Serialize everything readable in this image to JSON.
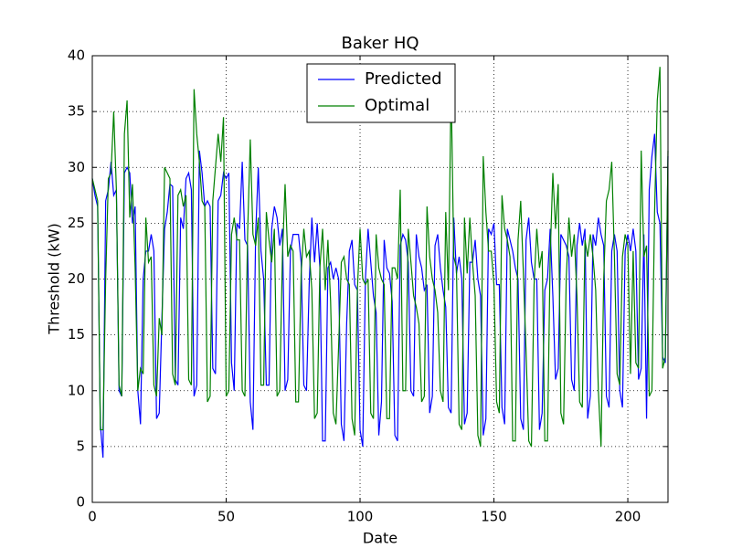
{
  "chart_data": {
    "type": "line",
    "title": "Baker HQ",
    "x_label": "Date",
    "y_label": "Threshold (kW)",
    "x": [
      0,
      1,
      2,
      3,
      4,
      5,
      6,
      7,
      8,
      9,
      10,
      11,
      12,
      13,
      14,
      15,
      16,
      17,
      18,
      19,
      20,
      21,
      22,
      23,
      24,
      25,
      26,
      27,
      28,
      29,
      30,
      31,
      32,
      33,
      34,
      35,
      36,
      37,
      38,
      39,
      40,
      41,
      42,
      43,
      44,
      45,
      46,
      47,
      48,
      49,
      50,
      51,
      52,
      53,
      54,
      55,
      56,
      57,
      58,
      59,
      60,
      61,
      62,
      63,
      64,
      65,
      66,
      67,
      68,
      69,
      70,
      71,
      72,
      73,
      74,
      75,
      76,
      77,
      78,
      79,
      80,
      81,
      82,
      83,
      84,
      85,
      86,
      87,
      88,
      89,
      90,
      91,
      92,
      93,
      94,
      95,
      96,
      97,
      98,
      99,
      100,
      101,
      102,
      103,
      104,
      105,
      106,
      107,
      108,
      109,
      110,
      111,
      112,
      113,
      114,
      115,
      116,
      117,
      118,
      119,
      120,
      121,
      122,
      123,
      124,
      125,
      126,
      127,
      128,
      129,
      130,
      131,
      132,
      133,
      134,
      135,
      136,
      137,
      138,
      139,
      140,
      141,
      142,
      143,
      144,
      145,
      146,
      147,
      148,
      149,
      150,
      151,
      152,
      153,
      154,
      155,
      156,
      157,
      158,
      159,
      160,
      161,
      162,
      163,
      164,
      165,
      166,
      167,
      168,
      169,
      170,
      171,
      172,
      173,
      174,
      175,
      176,
      177,
      178,
      179,
      180,
      181,
      182,
      183,
      184,
      185,
      186,
      187,
      188,
      189,
      190,
      191,
      192,
      193,
      194,
      195,
      196,
      197,
      198,
      199,
      200,
      201,
      202,
      203,
      204,
      205,
      206,
      207,
      208,
      209,
      210,
      211,
      212,
      213,
      214,
      215
    ],
    "series": [
      {
        "name": "Predicted",
        "color": "#0000ff",
        "values": [
          29,
          27.5,
          26.5,
          7,
          4,
          27,
          28,
          30.5,
          27.5,
          28,
          10,
          9.5,
          29.5,
          30,
          29.5,
          25,
          26.5,
          10,
          7,
          20,
          22.5,
          22.5,
          24,
          22.5,
          7.5,
          8,
          16.5,
          24.5,
          26,
          28.5,
          28.3,
          11,
          10.5,
          25.5,
          24.5,
          29,
          29.5,
          28,
          9.5,
          10.5,
          31.5,
          29.5,
          26.5,
          27,
          26.5,
          12,
          11.5,
          27,
          27.5,
          29.5,
          29,
          29.5,
          12.5,
          10,
          25,
          24.5,
          30.5,
          23.5,
          23,
          9,
          6.5,
          24,
          30,
          22.5,
          20,
          10.5,
          10.5,
          24.5,
          26.5,
          25.5,
          23,
          24.5,
          10,
          11,
          22.5,
          24,
          24,
          24,
          21.5,
          10.5,
          10,
          19.5,
          25.5,
          21.5,
          25,
          21,
          5.5,
          5.5,
          21,
          21.5,
          20,
          21,
          20,
          7,
          5.5,
          16,
          22.5,
          23.5,
          19.5,
          19,
          6.5,
          5,
          20,
          24.5,
          21.5,
          18.5,
          17,
          6,
          9,
          23.5,
          21,
          20.5,
          18,
          6,
          5.5,
          23,
          24,
          23.5,
          21.5,
          10,
          9.5,
          24,
          22,
          21,
          19,
          19.5,
          8,
          9.5,
          23,
          24,
          21,
          19,
          17.5,
          8.5,
          8,
          25.5,
          20.5,
          22,
          20,
          7,
          8,
          21.5,
          21.5,
          23.5,
          20,
          18.5,
          6,
          7.5,
          24.5,
          24,
          25,
          19.5,
          19.5,
          8.5,
          7,
          24.5,
          23.5,
          22.5,
          21,
          20,
          7.5,
          6.5,
          23.5,
          25.5,
          21.5,
          20,
          20,
          6.5,
          8,
          19,
          20,
          24.5,
          18.5,
          11,
          12,
          24,
          23.5,
          23,
          22,
          11,
          10,
          23,
          25,
          23,
          24.5,
          7.5,
          9.5,
          24,
          23,
          25.5,
          24,
          23,
          9.5,
          8.5,
          22.5,
          24,
          22.5,
          10,
          8.5,
          22.5,
          24,
          22.5,
          24.5,
          22.5,
          11,
          12,
          24,
          7.5,
          28,
          31,
          33,
          26,
          25,
          13,
          12.5,
          31
        ]
      },
      {
        "name": "Optimal",
        "color": "#008000",
        "values": [
          29,
          28,
          27,
          6.5,
          6.5,
          20,
          29,
          29.5,
          35,
          28,
          10.5,
          9.5,
          33,
          36,
          25.5,
          28.5,
          21,
          10,
          12,
          11.5,
          25.5,
          21.5,
          22,
          10.5,
          9.5,
          16.5,
          15,
          30,
          29.5,
          29,
          11.5,
          10.5,
          27.5,
          28,
          26.5,
          27.5,
          11,
          10.5,
          37,
          33,
          30.5,
          27,
          26.5,
          9,
          9.5,
          27,
          30,
          33,
          30.5,
          34.5,
          9.5,
          10,
          24,
          25.5,
          23.5,
          23.5,
          10,
          9.5,
          24,
          32.5,
          24,
          23,
          25.5,
          10.5,
          10.5,
          26,
          23.5,
          21.5,
          24.5,
          9.5,
          10,
          22,
          28.5,
          22,
          23,
          22.5,
          9,
          9,
          20.5,
          24.5,
          22,
          22.5,
          19,
          7.5,
          8,
          21,
          24.5,
          19,
          23.5,
          18,
          8,
          7,
          14,
          21.5,
          22,
          20,
          19.5,
          7.5,
          6,
          19,
          24.5,
          20,
          19.5,
          20,
          8,
          7.5,
          24,
          21,
          20,
          19.5,
          7.5,
          7.5,
          21,
          21,
          20,
          28,
          10,
          10,
          24.5,
          21.5,
          18.5,
          17.5,
          16,
          9,
          9.5,
          26.5,
          22,
          20,
          19,
          17,
          10,
          9,
          26,
          19,
          37.5,
          22,
          21,
          7,
          6.5,
          25.5,
          20.5,
          25.5,
          21.5,
          18.5,
          6,
          5,
          31,
          26,
          22.5,
          22.5,
          19.5,
          9,
          8,
          27.5,
          24.5,
          23.5,
          22,
          5.5,
          5.5,
          23.5,
          27,
          20.5,
          13.5,
          5.5,
          5,
          19.5,
          24.5,
          21,
          22.5,
          5.5,
          5.5,
          22,
          29.5,
          24.5,
          28.5,
          8,
          7,
          20,
          25.5,
          22,
          24,
          18.5,
          9,
          8.5,
          23.5,
          22,
          24,
          22,
          19,
          10,
          5,
          20,
          27,
          28,
          30.5,
          22,
          11.5,
          10.5,
          22,
          24,
          23,
          11.5,
          22.5,
          12.5,
          12,
          31.5,
          22,
          23,
          9.5,
          10,
          26,
          36,
          39,
          12,
          13,
          31.5
        ]
      }
    ],
    "xlim": [
      0,
      215
    ],
    "xticks": [
      0,
      50,
      100,
      150,
      200
    ],
    "ylim": [
      0,
      40
    ],
    "yticks": [
      0,
      5,
      10,
      15,
      20,
      25,
      30,
      35,
      40
    ],
    "grid": true,
    "legend": "upper center"
  }
}
